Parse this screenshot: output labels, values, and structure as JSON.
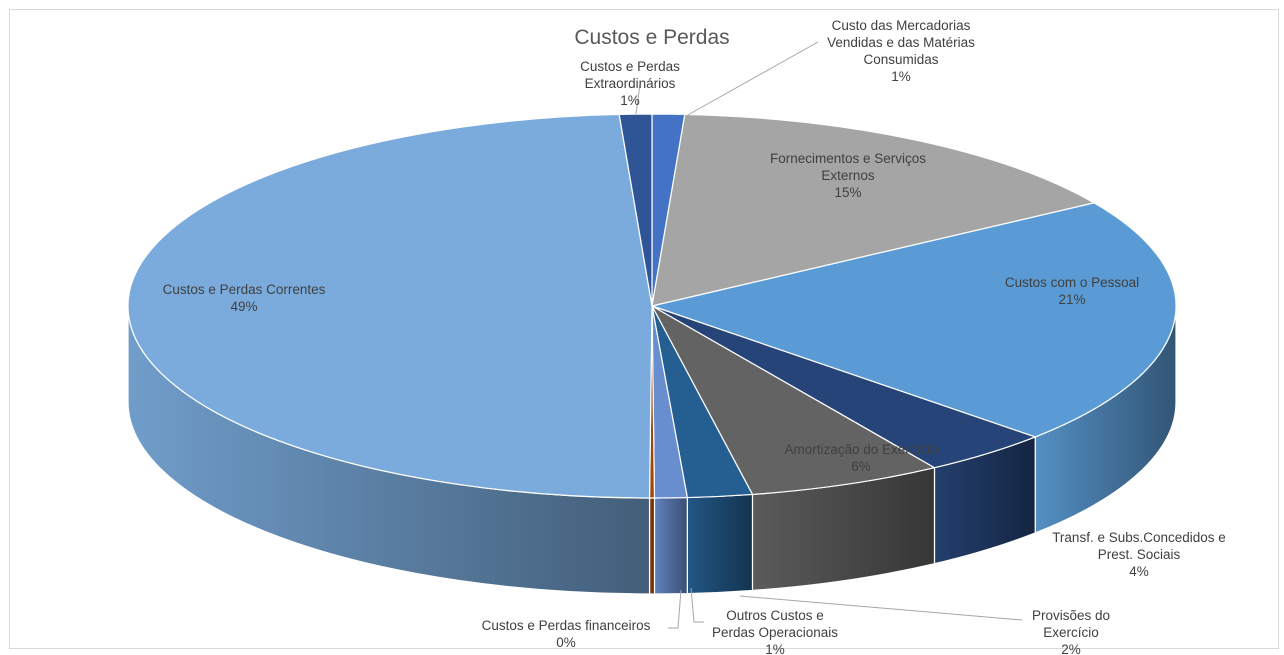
{
  "chart_data": {
    "type": "pie",
    "title": "Custos e Perdas",
    "slices": [
      {
        "label": "Custo das Mercadorias Vendidas e das Matérias Consumidas",
        "value": 1,
        "display": "1%",
        "color": "#4472c4",
        "label_lines": [
          "Custo das Mercadorias",
          "Vendidas e das Matérias",
          "Consumidas"
        ]
      },
      {
        "label": "Fornecimentos e Serviços Externos",
        "value": 15,
        "display": "15%",
        "color": "#a5a5a5",
        "label_lines": [
          "Fornecimentos e Serviços",
          "Externos"
        ]
      },
      {
        "label": "Custos com o Pessoal",
        "value": 21,
        "display": "21%",
        "color": "#5b9bd5",
        "label_lines": [
          "Custos com o Pessoal"
        ]
      },
      {
        "label": "Transf. e Subs.Concedidos e Prest. Sociais",
        "value": 4,
        "display": "4%",
        "color": "#264478",
        "label_lines": [
          "Transf. e Subs.Concedidos e",
          "Prest. Sociais"
        ]
      },
      {
        "label": "Amortização do Exercício",
        "value": 6,
        "display": "6%",
        "color": "#636363",
        "label_lines": [
          "Amortização do Exercício"
        ]
      },
      {
        "label": "Provisões do Exercício",
        "value": 2,
        "display": "2%",
        "color": "#255e91",
        "label_lines": [
          "Provisões do",
          "Exercício"
        ]
      },
      {
        "label": "Outros Custos e Perdas Operacionais",
        "value": 1,
        "display": "1%",
        "color": "#698ed0",
        "label_lines": [
          "Outros Custos e",
          "Perdas Operacionais"
        ]
      },
      {
        "label": "Custos e Perdas financeiros",
        "value": 0,
        "display": "0%",
        "color": "#9e480e",
        "label_lines": [
          "Custos e Perdas financeiros"
        ]
      },
      {
        "label": "Custos e Perdas Correntes",
        "value": 49,
        "display": "49%",
        "color": "#7aabdc",
        "label_lines": [
          "Custos e Perdas Correntes"
        ]
      },
      {
        "label": "Custos e Perdas Extraordinários",
        "value": 1,
        "display": "1%",
        "color": "#2f5597",
        "label_lines": [
          "Custos e Perdas",
          "Extraordinários"
        ]
      }
    ],
    "style": "3d-pie",
    "legend": "none"
  }
}
